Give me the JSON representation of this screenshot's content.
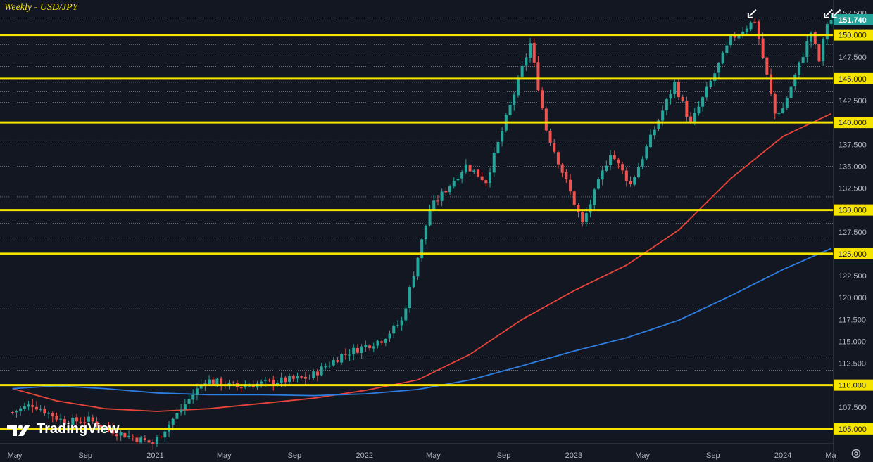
{
  "chart_title": "Weekly - USD/JPY",
  "logo_text": "TradingView",
  "colors": {
    "background": "#131722",
    "up_candle": "#26a69a",
    "down_candle": "#ef5350",
    "level_line": "#f5e400",
    "ma_red": "#e8443a",
    "ma_blue": "#2e7de1",
    "axis_text": "#b2b5be",
    "price_tag_bg": "#26a69a"
  },
  "icons": [
    "tradingview-logo-icon",
    "settings-gear-icon",
    "arrow-annotation-icon"
  ],
  "chart_data": {
    "type": "candlestick",
    "title": "Weekly - USD/JPY",
    "x_tick_labels": [
      "May",
      "Sep",
      "2021",
      "May",
      "Sep",
      "2022",
      "May",
      "Sep",
      "2023",
      "May",
      "Sep",
      "2024",
      "Ma"
    ],
    "y_tick_labels": [
      "152.500",
      "150.000",
      "147.500",
      "145.000",
      "142.500",
      "140.000",
      "137.500",
      "135.000",
      "132.500",
      "130.000",
      "127.500",
      "125.000",
      "122.500",
      "120.000",
      "117.500",
      "115.000",
      "112.500",
      "110.000",
      "107.500",
      "105.000"
    ],
    "ylim": [
      102.25,
      153.5
    ],
    "last_price": 151.74,
    "highlighted_levels": [
      150.0,
      145.0,
      140.0,
      130.0,
      125.0,
      110.0,
      105.0
    ],
    "highlighted_level_labels": [
      "150.000",
      "145.000",
      "140.000",
      "130.000",
      "125.000",
      "110.000",
      "105.000"
    ],
    "horizontal_reference_lines": [
      151.95,
      148.9,
      147.6,
      146.4,
      144.6,
      143.5,
      142.3,
      137.9,
      135.0,
      131.5,
      128.5,
      126.8,
      118.7,
      113.2,
      111.7
    ],
    "anchor_weeks": [
      {
        "date": "2020-04-27",
        "close": 106.9
      },
      {
        "date": "2020-06-01",
        "close": 107.8
      },
      {
        "date": "2020-07-27",
        "close": 105.8
      },
      {
        "date": "2020-09-07",
        "close": 106.0
      },
      {
        "date": "2020-10-26",
        "close": 104.6
      },
      {
        "date": "2020-12-28",
        "close": 103.3
      },
      {
        "date": "2021-03-29",
        "close": 110.6
      },
      {
        "date": "2021-05-24",
        "close": 109.8
      },
      {
        "date": "2021-07-05",
        "close": 110.2
      },
      {
        "date": "2021-09-27",
        "close": 110.9
      },
      {
        "date": "2021-11-22",
        "close": 113.4
      },
      {
        "date": "2022-01-31",
        "close": 115.2
      },
      {
        "date": "2022-03-07",
        "close": 117.3
      },
      {
        "date": "2022-04-25",
        "close": 130.1
      },
      {
        "date": "2022-06-27",
        "close": 135.1
      },
      {
        "date": "2022-08-01",
        "close": 133.3
      },
      {
        "date": "2022-10-17",
        "close": 149.0
      },
      {
        "date": "2022-11-14",
        "close": 139.2
      },
      {
        "date": "2023-01-16",
        "close": 128.4
      },
      {
        "date": "2023-03-06",
        "close": 136.6
      },
      {
        "date": "2023-04-10",
        "close": 132.9
      },
      {
        "date": "2023-06-26",
        "close": 144.5
      },
      {
        "date": "2023-07-24",
        "close": 139.8
      },
      {
        "date": "2023-10-02",
        "close": 149.5
      },
      {
        "date": "2023-11-13",
        "close": 151.7
      },
      {
        "date": "2023-12-18",
        "close": 141.0
      },
      {
        "date": "2024-01-01",
        "close": 141.6
      },
      {
        "date": "2024-02-19",
        "close": 150.3
      },
      {
        "date": "2024-03-04",
        "close": 147.0
      },
      {
        "date": "2024-03-18",
        "close": 151.4
      },
      {
        "date": "2024-03-25",
        "close": 151.74
      }
    ],
    "series": [
      {
        "type": "line",
        "values": [
          {
            "date": "2020-04-27",
            "value": 109.6
          },
          {
            "date": "2020-07-13",
            "value": 108.2
          },
          {
            "date": "2020-10-05",
            "value": 107.3
          },
          {
            "date": "2021-01-04",
            "value": 107.0
          },
          {
            "date": "2021-04-05",
            "value": 107.3
          },
          {
            "date": "2021-07-05",
            "value": 107.9
          },
          {
            "date": "2021-10-04",
            "value": 108.5
          },
          {
            "date": "2022-01-03",
            "value": 109.4
          },
          {
            "date": "2022-04-04",
            "value": 110.6
          },
          {
            "date": "2022-07-04",
            "value": 113.5
          },
          {
            "date": "2022-10-03",
            "value": 117.5
          },
          {
            "date": "2023-01-02",
            "value": 120.8
          },
          {
            "date": "2023-04-03",
            "value": 123.7
          },
          {
            "date": "2023-07-03",
            "value": 127.7
          },
          {
            "date": "2023-10-02",
            "value": 133.6
          },
          {
            "date": "2024-01-01",
            "value": 138.4
          },
          {
            "date": "2024-03-25",
            "value": 141.0
          }
        ]
      },
      {
        "type": "line",
        "values": [
          {
            "date": "2020-04-27",
            "value": 109.6
          },
          {
            "date": "2020-07-13",
            "value": 109.9
          },
          {
            "date": "2020-10-05",
            "value": 109.6
          },
          {
            "date": "2021-01-04",
            "value": 109.1
          },
          {
            "date": "2021-04-05",
            "value": 108.9
          },
          {
            "date": "2021-07-05",
            "value": 108.9
          },
          {
            "date": "2021-10-04",
            "value": 108.8
          },
          {
            "date": "2022-01-03",
            "value": 109.0
          },
          {
            "date": "2022-04-04",
            "value": 109.5
          },
          {
            "date": "2022-07-04",
            "value": 110.6
          },
          {
            "date": "2022-10-03",
            "value": 112.2
          },
          {
            "date": "2023-01-02",
            "value": 113.9
          },
          {
            "date": "2023-04-03",
            "value": 115.4
          },
          {
            "date": "2023-07-03",
            "value": 117.4
          },
          {
            "date": "2023-10-02",
            "value": 120.2
          },
          {
            "date": "2024-01-01",
            "value": 123.2
          },
          {
            "date": "2024-03-25",
            "value": 125.6
          }
        ]
      }
    ],
    "annotations": [
      {
        "type": "arrow",
        "date": "2023-10-30",
        "value": 152.0
      },
      {
        "type": "arrow",
        "date": "2024-03-11",
        "value": 152.0
      },
      {
        "type": "arrow",
        "date": "2024-03-25",
        "value": 152.0
      }
    ],
    "grid": false,
    "legend": "none"
  }
}
